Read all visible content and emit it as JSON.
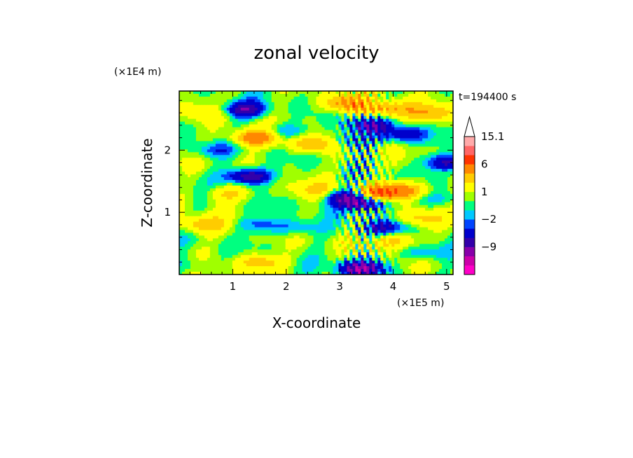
{
  "chart_data": {
    "type": "heatmap",
    "title": "zonal velocity",
    "xlabel": "X-coordinate",
    "ylabel": "Z-coordinate",
    "x_unit": "(×1E5 m)",
    "y_unit": "(×1E4 m)",
    "time_label": "t=194400 s",
    "xlim": [
      0,
      5.12
    ],
    "ylim": [
      0,
      2.95
    ],
    "x_ticks": [
      "1",
      "2",
      "3",
      "4",
      "5"
    ],
    "y_ticks": [
      "1",
      "2"
    ],
    "x_tick_values": [
      1,
      2,
      3,
      4,
      5
    ],
    "y_tick_values": [
      1,
      2
    ],
    "colorbar": {
      "labels": [
        "15.1",
        "6",
        "1",
        "−2",
        "−9"
      ],
      "label_values": [
        15.1,
        6,
        1,
        -2,
        -9
      ],
      "levels": [
        -15,
        -12,
        -9,
        -6,
        -4,
        -2,
        -1,
        0,
        1,
        2,
        4,
        6,
        9,
        12,
        15.1
      ],
      "colors": [
        "#ff00c8",
        "#cc00aa",
        "#8800aa",
        "#3300aa",
        "#0000cc",
        "#0044ff",
        "#00c8ff",
        "#00ff80",
        "#a0ff00",
        "#ffff00",
        "#ffcc00",
        "#ff8800",
        "#ff3300",
        "#ff6666",
        "#ffaaaa"
      ],
      "extend": "max"
    },
    "features": [
      {
        "x": 1.2,
        "z": 2.65,
        "u": -7
      },
      {
        "x": 1.3,
        "z": 1.58,
        "u": -8
      },
      {
        "x": 3.5,
        "z": 2.4,
        "u": -6
      },
      {
        "x": 3.2,
        "z": 2.15,
        "u": -4
      },
      {
        "x": 4.2,
        "z": 2.25,
        "u": -5
      },
      {
        "x": 5.0,
        "z": 1.8,
        "u": -6
      },
      {
        "x": 3.45,
        "z": 1.15,
        "u": -8
      },
      {
        "x": 3.1,
        "z": 1.25,
        "u": -6
      },
      {
        "x": 3.8,
        "z": 0.75,
        "u": -5
      },
      {
        "x": 3.4,
        "z": 0.1,
        "u": -9
      },
      {
        "x": 0.6,
        "z": 2.0,
        "u": -3
      },
      {
        "x": 2.0,
        "z": 2.3,
        "u": -3
      },
      {
        "x": 2.2,
        "z": 0.75,
        "u": -3
      },
      {
        "x": 1.5,
        "z": 0.8,
        "u": -3
      },
      {
        "x": 0.2,
        "z": 0.15,
        "u": -2
      },
      {
        "x": 4.6,
        "z": 0.35,
        "u": -3
      },
      {
        "x": 4.8,
        "z": 1.2,
        "u": -2
      },
      {
        "x": 1.4,
        "z": 2.2,
        "u": 7
      },
      {
        "x": 2.5,
        "z": 2.1,
        "u": 5
      },
      {
        "x": 3.7,
        "z": 1.3,
        "u": 7
      },
      {
        "x": 4.2,
        "z": 1.35,
        "u": 6
      },
      {
        "x": 3.1,
        "z": 2.75,
        "u": 6
      },
      {
        "x": 3.9,
        "z": 2.65,
        "u": 5
      },
      {
        "x": 0.4,
        "z": 0.8,
        "u": 4
      },
      {
        "x": 4.0,
        "z": 0.55,
        "u": 4
      },
      {
        "x": 1.5,
        "z": 0.2,
        "u": 4
      },
      {
        "x": 2.6,
        "z": 1.35,
        "u": 3
      },
      {
        "x": 4.7,
        "z": 2.6,
        "u": 4
      },
      {
        "x": 0.9,
        "z": 1.3,
        "u": 3
      },
      {
        "x": 0.5,
        "z": 2.6,
        "u": 2
      },
      {
        "x": 4.5,
        "z": 0.9,
        "u": 3
      }
    ]
  }
}
